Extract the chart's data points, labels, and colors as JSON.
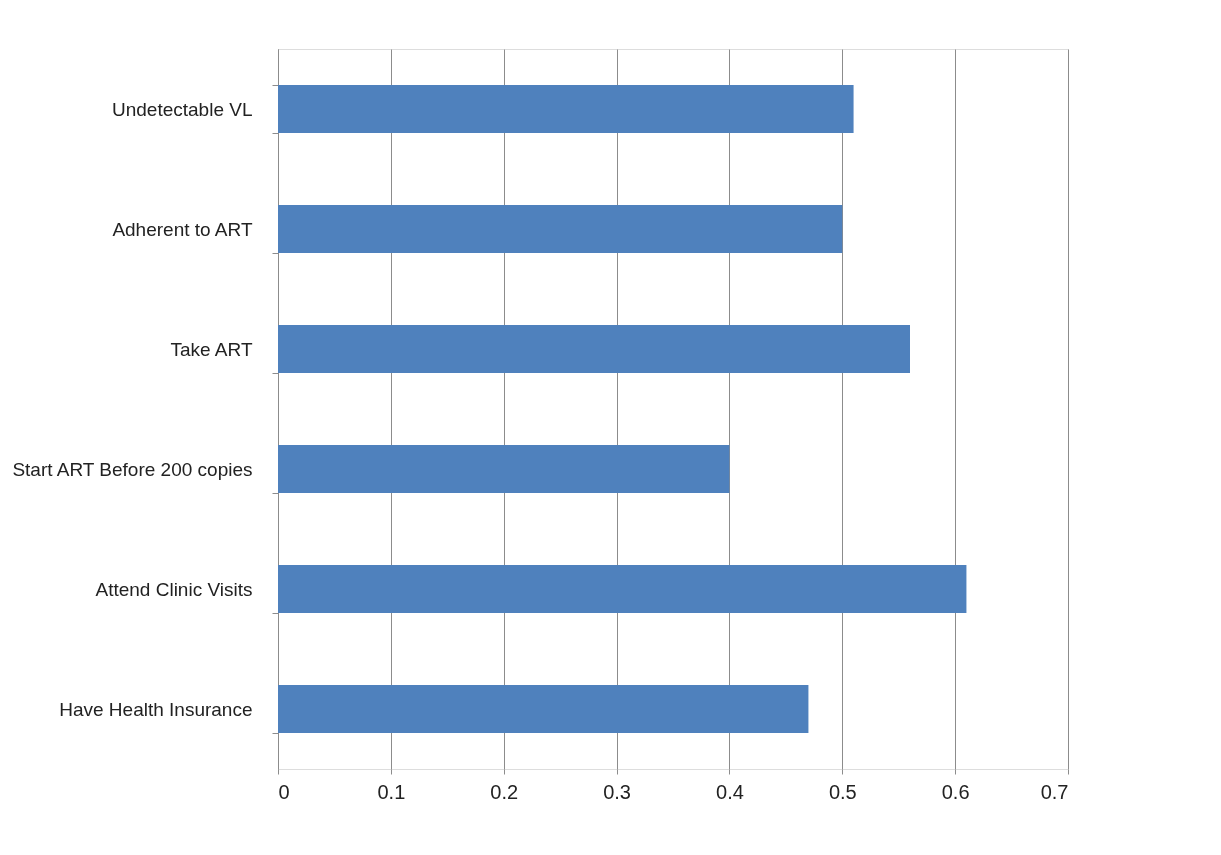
{
  "chart_data": {
    "type": "bar",
    "orientation": "horizontal",
    "categories": [
      "Undetectable VL",
      "Adherent to ART",
      "Take ART",
      "Start ART Before 200 copies",
      "Attend Clinic Visits",
      "Have Health Insurance"
    ],
    "values": [
      0.51,
      0.5,
      0.56,
      0.4,
      0.61,
      0.47
    ],
    "color": "#4f81bd",
    "xlim": [
      0,
      0.7
    ],
    "xticks": [
      0,
      0.1,
      0.2,
      0.3,
      0.4,
      0.5,
      0.6,
      0.7
    ],
    "grid": "x"
  }
}
